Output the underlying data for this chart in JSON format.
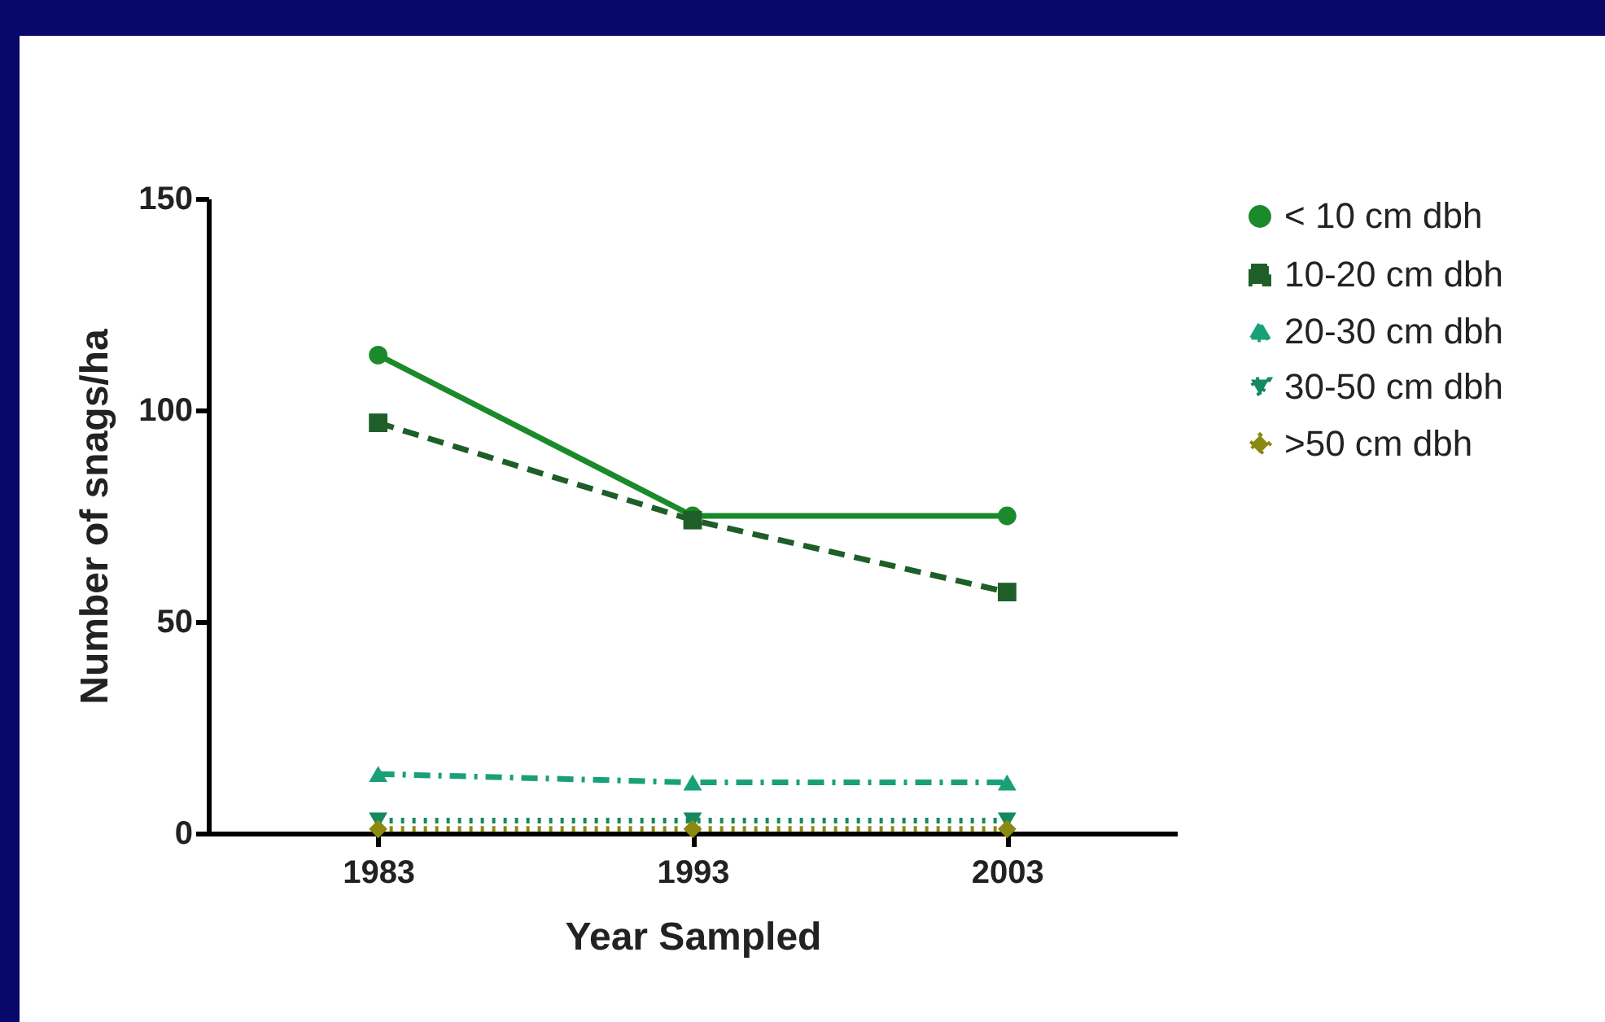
{
  "chart_data": {
    "type": "line",
    "xlabel": "Year Sampled",
    "ylabel": "Number of snags/ha",
    "categories": [
      "1983",
      "1993",
      "2003"
    ],
    "series": [
      {
        "name": "< 10 cm dbh",
        "color": "#1a8a2a",
        "values": [
          113,
          75,
          75
        ],
        "marker": "circle",
        "line_style": "solid"
      },
      {
        "name": "10-20 cm dbh",
        "color": "#1e5e28",
        "values": [
          97,
          74,
          57
        ],
        "marker": "square",
        "line_style": "dashed"
      },
      {
        "name": "20-30 cm dbh",
        "color": "#1aa078",
        "values": [
          14,
          12,
          12
        ],
        "marker": "triangle",
        "line_style": "dashdot"
      },
      {
        "name": "30-50 cm dbh",
        "color": "#138a5e",
        "values": [
          3,
          3,
          3
        ],
        "marker": "triangle-down",
        "line_style": "dotted"
      },
      {
        "name": ">50 cm dbh",
        "color": "#8a8a10",
        "values": [
          1,
          1,
          1
        ],
        "marker": "diamond",
        "line_style": "dotted"
      }
    ],
    "ylim": [
      0,
      150
    ],
    "yticks": [
      0,
      50,
      100,
      150
    ],
    "grid": false,
    "legend": "right"
  }
}
